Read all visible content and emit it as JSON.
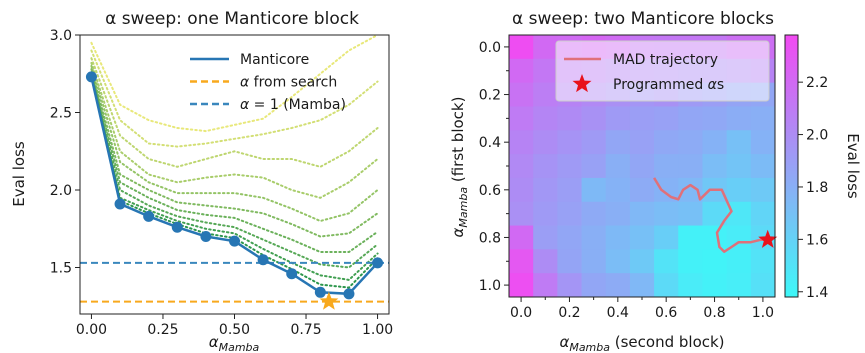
{
  "chart_data": [
    {
      "type": "line",
      "title": "α sweep: one Manticore block",
      "xlabel_base": "α",
      "xlabel_sub": "Mamba",
      "ylabel": "Eval loss",
      "xlim": [
        -0.04,
        1.04
      ],
      "ylim": [
        1.2,
        3.0
      ],
      "x_ticks": [
        "0.00",
        "0.25",
        "0.50",
        "0.75",
        "1.00"
      ],
      "y_ticks": [
        "1.5",
        "2.0",
        "2.5",
        "3.0"
      ],
      "legend_position": "top-right",
      "colors": {
        "manticore": "#2776b4",
        "search": "#f8a91d",
        "mamba": "#3a87bd"
      },
      "series": [
        {
          "name": "Manticore",
          "x": [
            0.0,
            0.1,
            0.2,
            0.3,
            0.4,
            0.5,
            0.6,
            0.7,
            0.8,
            0.9,
            1.0
          ],
          "y": [
            2.73,
            1.91,
            1.83,
            1.76,
            1.7,
            1.67,
            1.55,
            1.46,
            1.34,
            1.33,
            1.53
          ]
        }
      ],
      "search_alpha": {
        "name": "α from search",
        "y": 1.28,
        "marker_x": 0.83
      },
      "mamba_baseline": {
        "name_prefix": "α = 1",
        "name_suffix": " (Mamba)",
        "y": 1.53
      },
      "trajectories": [
        [
          2.95,
          2.55,
          2.45,
          2.4,
          2.38,
          2.42,
          2.46,
          2.6,
          2.75,
          2.9,
          3.0
        ],
        [
          2.9,
          2.45,
          2.3,
          2.28,
          2.3,
          2.33,
          2.36,
          2.4,
          2.45,
          2.55,
          2.7
        ],
        [
          2.85,
          2.35,
          2.2,
          2.15,
          2.2,
          2.25,
          2.2,
          2.2,
          2.15,
          2.25,
          2.4
        ],
        [
          2.82,
          2.25,
          2.1,
          2.05,
          2.08,
          2.1,
          2.08,
          2.0,
          1.95,
          2.05,
          2.2
        ],
        [
          2.8,
          2.18,
          2.05,
          1.98,
          1.98,
          1.98,
          1.95,
          1.88,
          1.8,
          1.85,
          2.0
        ],
        [
          2.78,
          2.1,
          2.0,
          1.92,
          1.9,
          1.88,
          1.85,
          1.78,
          1.7,
          1.72,
          1.85
        ],
        [
          2.76,
          2.05,
          1.95,
          1.87,
          1.84,
          1.82,
          1.75,
          1.68,
          1.6,
          1.6,
          1.73
        ],
        [
          2.75,
          2.0,
          1.9,
          1.83,
          1.79,
          1.76,
          1.68,
          1.6,
          1.52,
          1.5,
          1.65
        ],
        [
          2.74,
          1.95,
          1.87,
          1.8,
          1.75,
          1.72,
          1.62,
          1.53,
          1.45,
          1.42,
          1.59
        ],
        [
          2.73,
          1.93,
          1.85,
          1.78,
          1.72,
          1.69,
          1.58,
          1.49,
          1.39,
          1.37,
          1.56
        ]
      ]
    },
    {
      "type": "heatmap",
      "title": "α sweep: two Manticore blocks",
      "xlabel_base": "α",
      "xlabel_sub": "Mamba",
      "xlabel_suffix": " (second block)",
      "ylabel_base": "α",
      "ylabel_sub": "Mamba",
      "ylabel_suffix": " (first block)",
      "colorbar_label": "Eval loss",
      "colorbar_ticks": [
        "1.4",
        "1.6",
        "1.8",
        "2.0",
        "2.2"
      ],
      "colorbar_range": [
        1.38,
        2.38
      ],
      "colors": {
        "low": "#3df8f8",
        "high": "#f24af2",
        "trajectory": "#e0707a",
        "star": "#e8121c"
      },
      "ticks": [
        "0.0",
        "0.2",
        "0.4",
        "0.6",
        "0.8",
        "1.0"
      ],
      "legend_position": "top-right",
      "legend": [
        "MAD trajectory",
        "Programmed αs"
      ],
      "grid_values": [
        [
          2.36,
          2.2,
          2.19,
          2.22,
          2.19,
          2.13,
          2.12,
          2.12,
          2.12,
          2.17,
          2.17
        ],
        [
          2.2,
          2.12,
          2.1,
          2.08,
          2.05,
          2.03,
          2.02,
          2.0,
          2.0,
          2.02,
          2.05
        ],
        [
          2.15,
          2.08,
          2.05,
          2.02,
          1.98,
          1.95,
          1.97,
          1.92,
          1.9,
          1.86,
          1.85
        ],
        [
          2.1,
          2.04,
          2.01,
          1.97,
          1.92,
          1.9,
          1.88,
          1.85,
          1.84,
          1.81,
          1.8
        ],
        [
          2.05,
          2.0,
          1.96,
          1.92,
          1.85,
          1.88,
          1.84,
          1.82,
          1.78,
          1.7,
          1.78
        ],
        [
          2.02,
          1.96,
          1.92,
          1.88,
          1.8,
          1.85,
          1.8,
          1.8,
          1.72,
          1.68,
          1.73
        ],
        [
          2.0,
          1.94,
          1.9,
          1.74,
          1.78,
          1.82,
          1.78,
          1.75,
          1.66,
          1.62,
          1.65
        ],
        [
          1.98,
          1.92,
          1.88,
          1.83,
          1.8,
          1.75,
          1.72,
          1.7,
          1.55,
          1.48,
          1.58
        ],
        [
          2.2,
          1.9,
          1.85,
          1.8,
          1.74,
          1.7,
          1.62,
          1.42,
          1.42,
          1.45,
          1.55
        ],
        [
          2.3,
          2.0,
          1.86,
          1.8,
          1.72,
          1.65,
          1.5,
          1.42,
          1.41,
          1.43,
          1.5
        ],
        [
          2.35,
          2.1,
          1.95,
          1.85,
          1.82,
          1.75,
          1.55,
          1.45,
          1.42,
          1.44,
          1.52
        ]
      ],
      "trajectory": {
        "x": [
          0.55,
          0.58,
          0.62,
          0.65,
          0.67,
          0.7,
          0.73,
          0.74,
          0.78,
          0.83,
          0.87,
          0.84,
          0.81,
          0.82,
          0.84,
          0.87,
          0.9,
          0.95,
          0.99,
          1.01
        ],
        "y": [
          0.55,
          0.6,
          0.63,
          0.64,
          0.6,
          0.58,
          0.6,
          0.64,
          0.6,
          0.6,
          0.69,
          0.73,
          0.78,
          0.84,
          0.86,
          0.84,
          0.82,
          0.82,
          0.81,
          0.81
        ]
      },
      "programmed_alpha": {
        "x": 1.02,
        "y": 0.81
      }
    }
  ]
}
